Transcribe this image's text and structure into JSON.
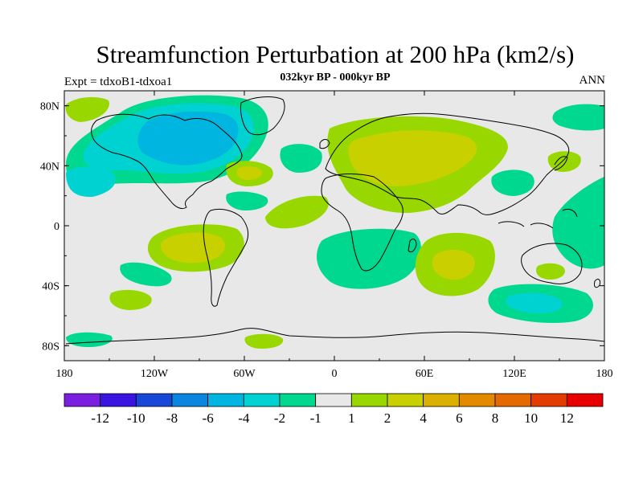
{
  "chart_data": {
    "type": "heatmap",
    "title": "Streamfunction Perturbation at 200 hPa (km2/s)",
    "subtitle": "032kyr BP - 000kyr BP",
    "left_label": "Expt = tdxoB1-tdxoa1",
    "right_label": "ANN",
    "xlim": [
      -180,
      180
    ],
    "ylim": [
      -90,
      90
    ],
    "x_ticks": [
      {
        "value": -180,
        "label": "180"
      },
      {
        "value": -120,
        "label": "120W"
      },
      {
        "value": -60,
        "label": "60W"
      },
      {
        "value": 0,
        "label": "0"
      },
      {
        "value": 60,
        "label": "60E"
      },
      {
        "value": 120,
        "label": "120E"
      },
      {
        "value": 180,
        "label": "180"
      }
    ],
    "y_ticks": [
      {
        "value": 80,
        "label": "80N"
      },
      {
        "value": 40,
        "label": "40N"
      },
      {
        "value": 0,
        "label": "0"
      },
      {
        "value": -40,
        "label": "40S"
      },
      {
        "value": -80,
        "label": "80S"
      }
    ],
    "colorbar": {
      "colors": [
        "#7a1ee0",
        "#3a14e0",
        "#1846d8",
        "#0a86e0",
        "#00b6e0",
        "#00d2d2",
        "#00d890",
        "#e8e8e8",
        "#98d800",
        "#c8d000",
        "#dcb000",
        "#e48a00",
        "#e46a00",
        "#e43c00",
        "#e80000"
      ],
      "labels": [
        "-12",
        "-10",
        "-8",
        "-6",
        "-4",
        "-2",
        "-1",
        "1",
        "2",
        "4",
        "6",
        "8",
        "10",
        "12"
      ]
    },
    "colors": {
      "background": "#e8e8e8",
      "level_neg1": "#00d890",
      "level_neg2": "#00d2d2",
      "level_neg4": "#00b6e0",
      "level_pos1": "#98d800",
      "level_pos2": "#c8d000"
    },
    "fields": [
      {
        "type": "positive",
        "level": 2,
        "lon_range": [
          10,
          120
        ],
        "lat_range": [
          15,
          65
        ],
        "max": "4"
      },
      {
        "type": "negative",
        "level": -4,
        "lon_range": [
          -170,
          -50
        ],
        "lat_range": [
          20,
          80
        ],
        "min": "-6"
      },
      {
        "type": "positive",
        "level": 2,
        "lon_range": [
          -140,
          -60
        ],
        "lat_range": [
          -40,
          0
        ],
        "max": "4"
      },
      {
        "type": "positive",
        "level": 2,
        "lon_range": [
          40,
          110
        ],
        "lat_range": [
          -50,
          -10
        ],
        "max": "4"
      },
      {
        "type": "negative",
        "level": -2,
        "lon_range": [
          -100,
          20
        ],
        "lat_range": [
          -30,
          50
        ],
        "min": "-4"
      },
      {
        "type": "negative",
        "level": -2,
        "lon_range": [
          90,
          180
        ],
        "lat_range": [
          -70,
          30
        ],
        "min": "-4"
      }
    ]
  }
}
